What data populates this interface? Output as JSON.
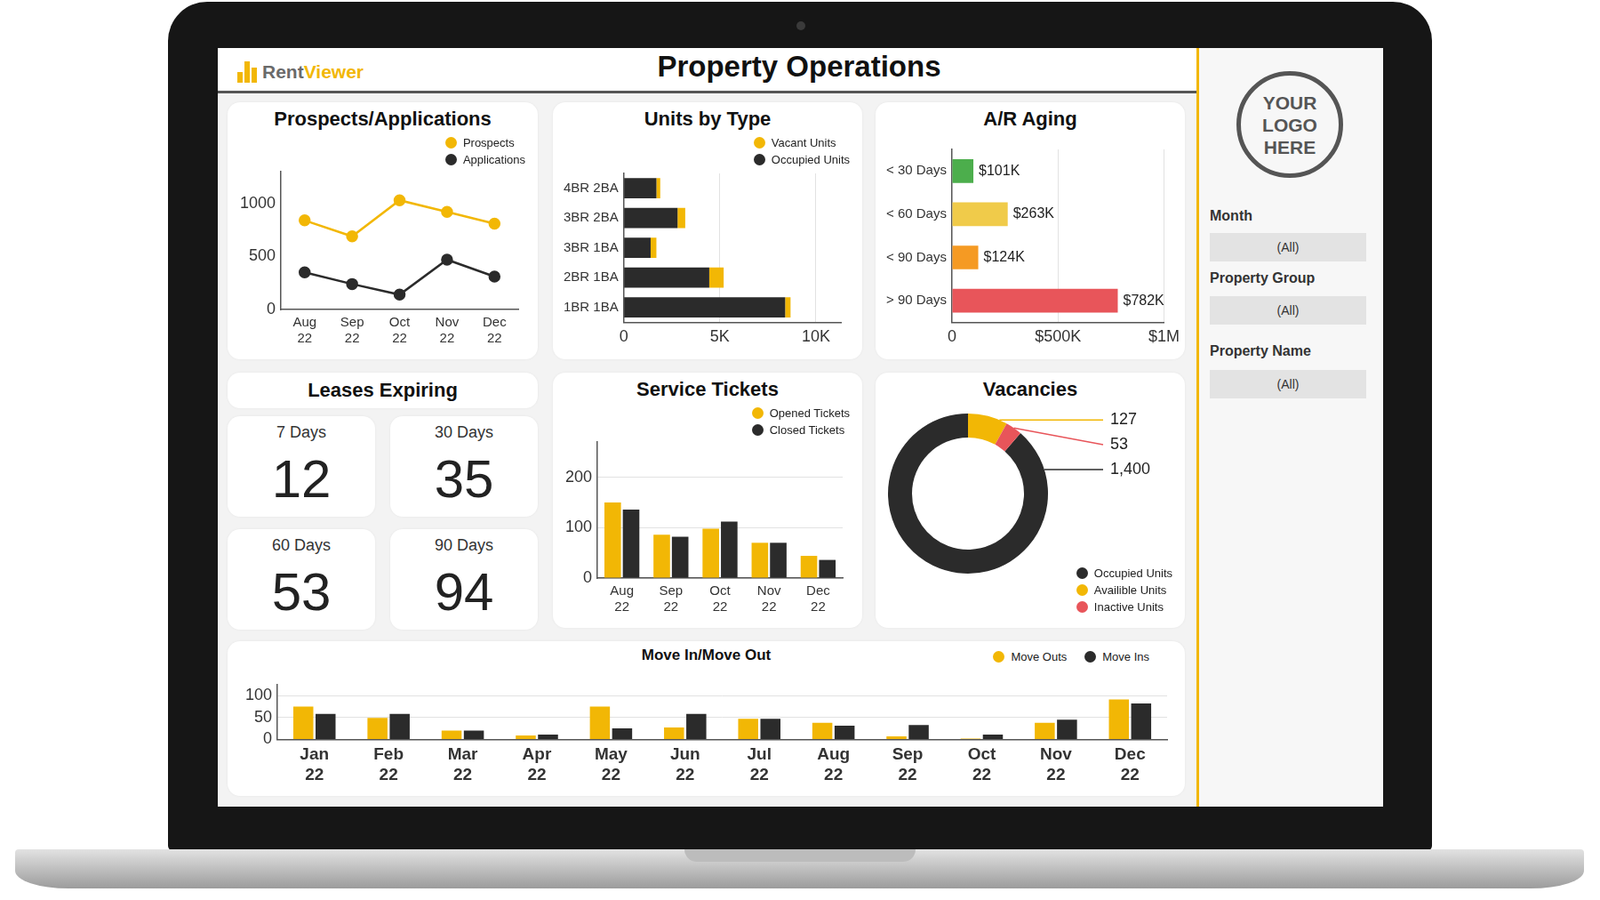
{
  "header": {
    "logo": [
      "Rent",
      "Viewer"
    ],
    "title": "Property Operations"
  },
  "sidebar": {
    "logo": "YOUR LOGO HERE",
    "filters": [
      {
        "label": "Month",
        "value": "(All)"
      },
      {
        "label": "Property Group",
        "value": "(All)"
      },
      {
        "label": "Property Name",
        "value": "(All)"
      }
    ]
  },
  "leases_expiring": {
    "title": "Leases Expiring",
    "items": [
      {
        "label": "7 Days",
        "value": 12
      },
      {
        "label": "30 Days",
        "value": 35
      },
      {
        "label": "60 Days",
        "value": 53
      },
      {
        "label": "90 Days",
        "value": 94
      }
    ]
  },
  "chart_data": [
    {
      "type": "line",
      "title": "Prospects/Applications",
      "categories": [
        "Aug 22",
        "Sep 22",
        "Oct 22",
        "Nov 22",
        "Dec 22"
      ],
      "series": [
        {
          "name": "Prospects",
          "color": "#f2b705",
          "marker": "circle",
          "values": [
            840,
            690,
            1030,
            920,
            810
          ]
        },
        {
          "name": "Applications",
          "color": "#2b2b2b",
          "marker": "circle",
          "values": [
            350,
            240,
            140,
            470,
            310
          ]
        }
      ],
      "ylim": [
        0,
        1300
      ],
      "yticks": [
        0,
        500,
        1000
      ],
      "grid": false,
      "legend": "upper right"
    },
    {
      "type": "bar",
      "title": "Units by Type",
      "orientation": "horizontal",
      "stacked": true,
      "categories": [
        "4BR 2BA",
        "3BR 2BA",
        "3BR 1BA",
        "2BR 1BA",
        "1BR 1BA"
      ],
      "series": [
        {
          "name": "Vacant Units",
          "color": "#f2b705",
          "values": [
            200,
            400,
            300,
            750,
            280
          ]
        },
        {
          "name": "Occupied Units",
          "color": "#2b2b2b",
          "values": [
            1700,
            2800,
            1400,
            4450,
            8400
          ]
        }
      ],
      "xlim": [
        0,
        11300
      ],
      "xticks": [
        0,
        {
          "value": 5000,
          "label": "5K"
        },
        {
          "value": 10000,
          "label": "10K"
        }
      ],
      "grid": true,
      "legend": "upper right"
    },
    {
      "type": "bar",
      "title": "A/R Aging",
      "orientation": "horizontal",
      "categories": [
        "< 30 Days",
        "< 60 Days",
        "< 90 Days",
        "> 90 Days"
      ],
      "values": [
        101000,
        263000,
        124000,
        782000
      ],
      "value_labels": [
        "$101K",
        "$263K",
        "$124K",
        "$782K"
      ],
      "data_labels": true,
      "colors": [
        "#4cae4c",
        "#f0cb4a",
        "#f59a23",
        "#e8555a"
      ],
      "xlim": [
        0,
        1000000
      ],
      "xticks": [
        0,
        {
          "value": 500000,
          "label": "$500K"
        },
        {
          "value": 1000000,
          "label": "$1M"
        }
      ],
      "grid": true
    },
    {
      "type": "bar",
      "title": "Service Tickets",
      "categories": [
        "Aug 22",
        "Sep 22",
        "Oct 22",
        "Nov 22",
        "Dec 22"
      ],
      "series": [
        {
          "name": "Opened Tickets",
          "color": "#f2b705",
          "values": [
            150,
            86,
            98,
            70,
            44
          ]
        },
        {
          "name": "Closed Tickets",
          "color": "#2b2b2b",
          "values": [
            136,
            82,
            112,
            70,
            36
          ]
        }
      ],
      "ylim": [
        0,
        270
      ],
      "yticks": [
        0,
        100,
        200
      ],
      "grid": true,
      "legend": "upper right"
    },
    {
      "type": "doughnut",
      "title": "Vacancies",
      "categories": [
        "Occupied Units",
        "Availible Units",
        "Inactive Units"
      ],
      "values": [
        1400,
        127,
        53
      ],
      "value_labels": [
        "1,400",
        "127",
        "53"
      ],
      "data_labels": true,
      "colors": [
        "#2b2b2b",
        "#f2b705",
        "#e8555a"
      ],
      "legend": "lower right"
    },
    {
      "type": "bar",
      "title": "Move In/Move Out",
      "categories": [
        "Jan 22",
        "Feb 22",
        "Mar 22",
        "Apr 22",
        "May 22",
        "Jun 22",
        "Jul 22",
        "Aug 22",
        "Sep 22",
        "Oct 22",
        "Nov 22",
        "Dec 22"
      ],
      "series": [
        {
          "name": "Move Outs",
          "color": "#f2b705",
          "values": [
            75,
            49,
            20,
            9,
            75,
            27,
            47,
            38,
            7,
            2,
            38,
            91
          ]
        },
        {
          "name": "Move Ins",
          "color": "#2b2b2b",
          "values": [
            58,
            58,
            20,
            11,
            25,
            58,
            47,
            31,
            33,
            11,
            45,
            82
          ]
        }
      ],
      "ylim": [
        0,
        125
      ],
      "yticks": [
        0,
        50,
        100
      ],
      "grid": true,
      "legend": "upper right"
    }
  ]
}
